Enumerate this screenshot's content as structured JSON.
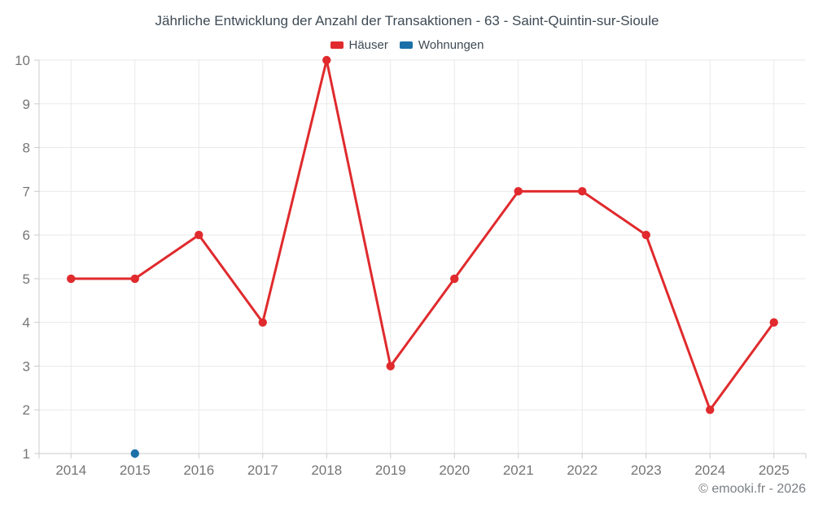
{
  "title": "Jährliche Entwicklung der Anzahl der Transaktionen - 63 - Saint-Quintin-sur-Sioule",
  "legend": [
    {
      "label": "Häuser",
      "color": "#e02a2d"
    },
    {
      "label": "Wohnungen",
      "color": "#1c70a8"
    }
  ],
  "attribution": "© emooki.fr - 2026",
  "chart_data": {
    "type": "line",
    "title": "Jährliche Entwicklung der Anzahl der Transaktionen - 63 - Saint-Quintin-sur-Sioule",
    "categories": [
      "2014",
      "2015",
      "2016",
      "2017",
      "2018",
      "2019",
      "2020",
      "2021",
      "2022",
      "2023",
      "2024",
      "2025"
    ],
    "series": [
      {
        "name": "Häuser",
        "color": "#e02a2d",
        "values": [
          5,
          5,
          6,
          4,
          10,
          3,
          5,
          7,
          7,
          6,
          2,
          4
        ]
      },
      {
        "name": "Wohnungen",
        "color": "#1c70a8",
        "values": [
          null,
          1,
          null,
          null,
          null,
          null,
          null,
          null,
          null,
          null,
          null,
          null
        ]
      }
    ],
    "xlabel": "",
    "ylabel": "",
    "ylim": [
      1,
      10
    ],
    "yticks": [
      1,
      2,
      3,
      4,
      5,
      6,
      7,
      8,
      9,
      10
    ],
    "grid": true,
    "legend_position": "top"
  },
  "colors": {
    "grid": "#e9e9e9",
    "axis_border": "#cbcbcb",
    "tick_label": "#757575"
  }
}
